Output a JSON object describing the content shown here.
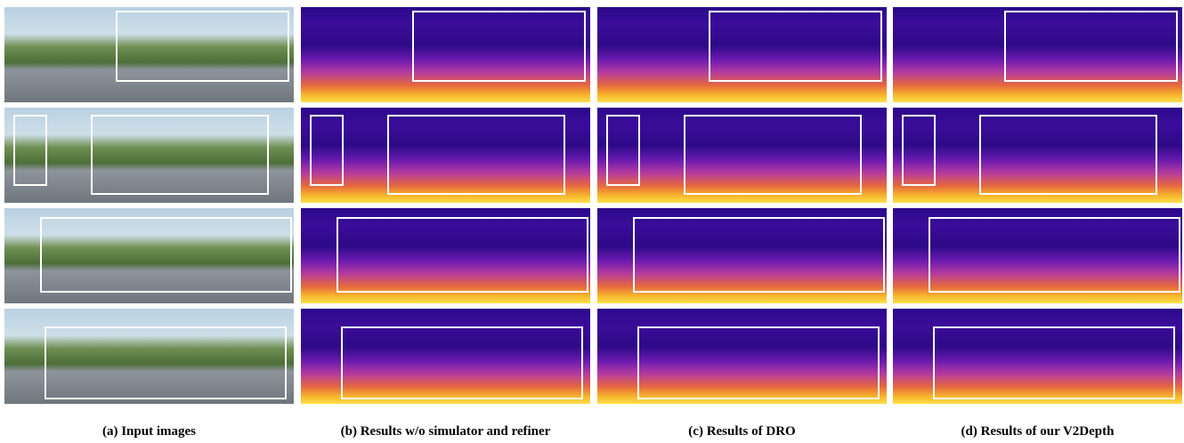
{
  "captions": [
    "(a) Input images",
    "(b) Results w/o simulator and refiner",
    "(c) Results of DRO",
    "(d) Results of our V2Depth"
  ]
}
